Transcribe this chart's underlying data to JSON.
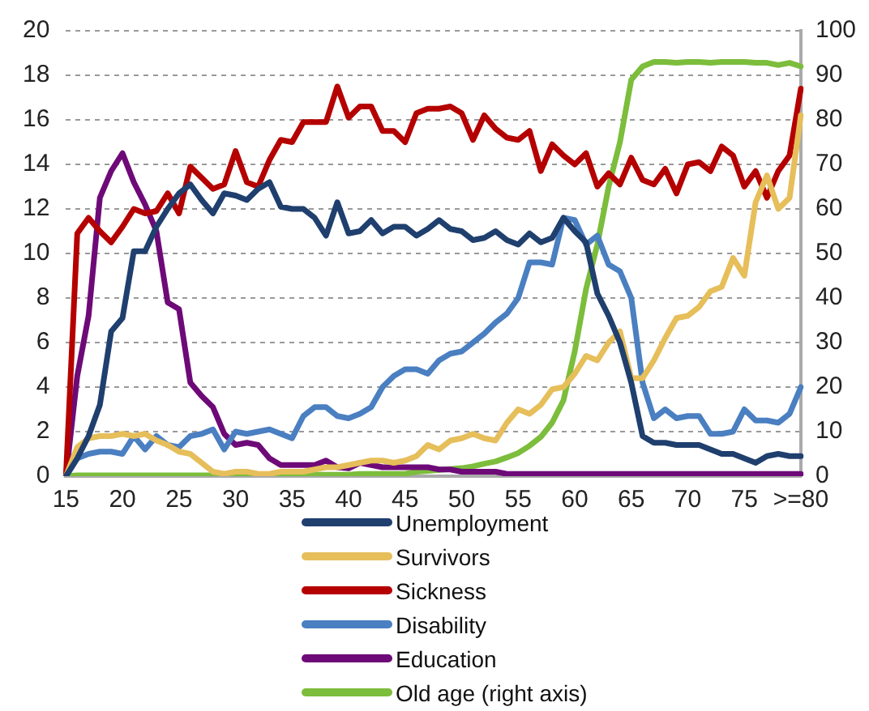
{
  "chart_data": {
    "type": "line",
    "categories": [
      "15",
      null,
      null,
      null,
      null,
      "20",
      null,
      null,
      null,
      null,
      "25",
      null,
      null,
      null,
      null,
      "30",
      null,
      null,
      null,
      null,
      "35",
      null,
      null,
      null,
      null,
      "40",
      null,
      null,
      null,
      null,
      "45",
      null,
      null,
      null,
      null,
      "50",
      null,
      null,
      null,
      null,
      "55",
      null,
      null,
      null,
      null,
      "60",
      null,
      null,
      null,
      null,
      "65",
      null,
      null,
      null,
      null,
      "70",
      null,
      null,
      null,
      null,
      "75",
      null,
      null,
      null,
      null,
      ">=80"
    ],
    "series": [
      {
        "name": "Unemployment",
        "color": "#1f3f6e",
        "values": [
          0,
          0.8,
          1.8,
          3.2,
          6.5,
          7.1,
          10.1,
          10.1,
          11.2,
          12.0,
          12.7,
          13.1,
          12.4,
          11.8,
          12.7,
          12.6,
          12.4,
          12.9,
          13.2,
          12.1,
          12.0,
          12.0,
          11.6,
          10.8,
          12.3,
          10.9,
          11.0,
          11.5,
          10.9,
          11.2,
          11.2,
          10.8,
          11.1,
          11.5,
          11.1,
          11.0,
          10.6,
          10.7,
          11.0,
          10.6,
          10.4,
          10.9,
          10.5,
          10.7,
          11.6,
          11.0,
          10.5,
          8.2,
          7.2,
          6.0,
          4.2,
          1.8,
          1.5,
          1.5,
          1.4,
          1.4,
          1.4,
          1.2,
          1.0,
          1.0,
          0.8,
          0.6,
          0.9,
          1.0,
          0.9,
          0.9
        ]
      },
      {
        "name": "Survivors",
        "color": "#e6be5a",
        "values": [
          0,
          1.3,
          1.7,
          1.8,
          1.8,
          1.9,
          1.8,
          1.9,
          1.6,
          1.4,
          1.1,
          1.0,
          0.6,
          0.2,
          0.1,
          0.2,
          0.2,
          0.1,
          0.1,
          0.2,
          0.2,
          0.2,
          0.3,
          0.4,
          0.4,
          0.5,
          0.6,
          0.7,
          0.7,
          0.6,
          0.7,
          0.9,
          1.4,
          1.2,
          1.6,
          1.7,
          1.9,
          1.7,
          1.6,
          2.4,
          3.0,
          2.8,
          3.2,
          3.9,
          4.0,
          4.6,
          5.4,
          5.2,
          6.0,
          6.5,
          4.4,
          4.4,
          5.2,
          6.2,
          7.1,
          7.2,
          7.6,
          8.3,
          8.5,
          9.8,
          9.0,
          12.3,
          13.5,
          12.0,
          12.5,
          16.2
        ]
      },
      {
        "name": "Sickness",
        "color": "#b50000",
        "values": [
          0,
          10.9,
          11.6,
          11.0,
          10.5,
          11.2,
          12.0,
          11.8,
          11.9,
          12.7,
          11.8,
          13.9,
          13.4,
          12.9,
          13.1,
          14.6,
          13.2,
          13.0,
          14.2,
          15.1,
          15.0,
          15.9,
          15.9,
          15.9,
          17.5,
          16.1,
          16.6,
          16.6,
          15.5,
          15.5,
          15.0,
          16.3,
          16.5,
          16.5,
          16.6,
          16.3,
          15.1,
          16.2,
          15.6,
          15.2,
          15.1,
          15.5,
          13.7,
          14.9,
          14.4,
          14.0,
          14.5,
          13.0,
          13.6,
          13.1,
          14.3,
          13.3,
          13.1,
          13.8,
          12.7,
          14.0,
          14.1,
          13.7,
          14.8,
          14.4,
          13.0,
          13.7,
          12.5,
          13.7,
          14.4,
          17.4
        ]
      },
      {
        "name": "Disability",
        "color": "#4a7fc1",
        "values": [
          0,
          0.8,
          1.0,
          1.1,
          1.1,
          1.0,
          1.8,
          1.2,
          1.8,
          1.4,
          1.3,
          1.8,
          1.9,
          2.1,
          1.2,
          2.0,
          1.9,
          2.0,
          2.1,
          1.9,
          1.7,
          2.7,
          3.1,
          3.1,
          2.7,
          2.6,
          2.8,
          3.1,
          4.0,
          4.5,
          4.8,
          4.8,
          4.6,
          5.2,
          5.5,
          5.6,
          6.0,
          6.4,
          6.9,
          7.3,
          8.0,
          9.6,
          9.6,
          9.5,
          11.6,
          11.5,
          10.4,
          10.8,
          9.5,
          9.2,
          8.0,
          4.2,
          2.6,
          3.0,
          2.6,
          2.7,
          2.7,
          1.9,
          1.9,
          2.0,
          3.0,
          2.5,
          2.5,
          2.4,
          2.8,
          4.0
        ]
      },
      {
        "name": "Education",
        "color": "#6e0a78",
        "values": [
          0,
          4.5,
          7.2,
          12.5,
          13.7,
          14.5,
          13.2,
          12.2,
          11.0,
          7.8,
          7.5,
          4.2,
          3.6,
          3.1,
          1.9,
          1.4,
          1.5,
          1.4,
          0.8,
          0.5,
          0.5,
          0.5,
          0.5,
          0.7,
          0.4,
          0.35,
          0.6,
          0.5,
          0.4,
          0.4,
          0.4,
          0.4,
          0.4,
          0.3,
          0.3,
          0.2,
          0.2,
          0.2,
          0.2,
          0.1,
          0.1,
          0.1,
          0.1,
          0.1,
          0.1,
          0.1,
          0.1,
          0.1,
          0.1,
          0.1,
          0.1,
          0.1,
          0.1,
          0.1,
          0.1,
          0.1,
          0.1,
          0.1,
          0.1,
          0.1,
          0.1,
          0.1,
          0.1,
          0.1,
          0.1,
          0.1
        ]
      },
      {
        "name": "Old age (right axis)",
        "color": "#7cbd3c",
        "axis": "y2",
        "values": [
          0,
          0.2,
          0.2,
          0.2,
          0.2,
          0.2,
          0.2,
          0.2,
          0.2,
          0.2,
          0.2,
          0.2,
          0.2,
          0.2,
          0.2,
          0.2,
          0.3,
          0.3,
          0.3,
          0.3,
          0.3,
          0.3,
          0.3,
          0.3,
          0.3,
          0.3,
          0.5,
          0.5,
          0.5,
          0.5,
          0.5,
          1.0,
          1.2,
          1.4,
          1.6,
          1.8,
          2.2,
          2.8,
          3.3,
          4.2,
          5.2,
          6.8,
          8.8,
          12,
          17,
          28,
          42,
          52,
          65,
          75,
          89,
          92,
          93,
          93,
          92.8,
          93,
          93,
          92.8,
          93,
          93,
          93,
          92.8,
          92.8,
          92.3,
          92.8,
          92
        ]
      }
    ],
    "ylim": [
      0,
      20
    ],
    "yticks": [
      0,
      2,
      4,
      6,
      8,
      10,
      12,
      14,
      16,
      18,
      20
    ],
    "y2lim": [
      0,
      100
    ],
    "y2ticks": [
      0,
      10,
      20,
      30,
      40,
      50,
      60,
      70,
      80,
      90,
      100
    ],
    "grid": "y",
    "legend": "bottom",
    "marker": "none",
    "line_style": "solid"
  }
}
